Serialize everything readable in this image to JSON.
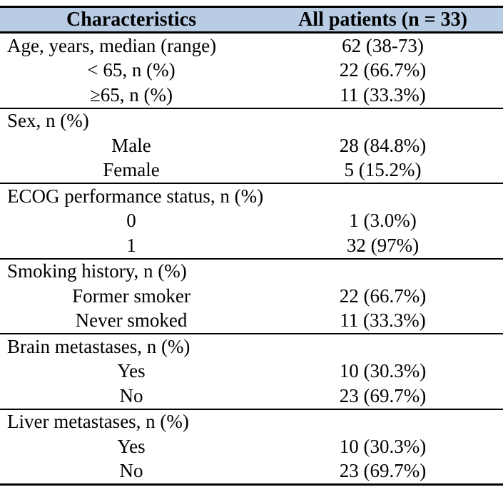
{
  "table": {
    "header": {
      "col1": "Characteristics",
      "col2": "All patients (n = 33)"
    },
    "sections": [
      {
        "name": "age",
        "rows": [
          {
            "label": "Age, years, median (range)",
            "value": "62 (38-73)",
            "indent": false
          },
          {
            "label": "< 65, n (%)",
            "value": "22 (66.7%)",
            "indent": true
          },
          {
            "label": "≥65, n (%)",
            "value": "11 (33.3%)",
            "indent": true
          }
        ]
      },
      {
        "name": "sex",
        "rows": [
          {
            "label": "Sex, n (%)",
            "value": "",
            "indent": false
          },
          {
            "label": "Male",
            "value": "28 (84.8%)",
            "indent": true
          },
          {
            "label": "Female",
            "value": "5 (15.2%)",
            "indent": true
          }
        ]
      },
      {
        "name": "ecog",
        "rows": [
          {
            "label": "ECOG performance status, n (%)",
            "value": "",
            "indent": false
          },
          {
            "label": "0",
            "value": "1 (3.0%)",
            "indent": true
          },
          {
            "label": "1",
            "value": "32 (97%)",
            "indent": true
          }
        ]
      },
      {
        "name": "smoking",
        "rows": [
          {
            "label": "Smoking history, n (%)",
            "value": "",
            "indent": false
          },
          {
            "label": "Former smoker",
            "value": "22 (66.7%)",
            "indent": true
          },
          {
            "label": "Never smoked",
            "value": "11 (33.3%)",
            "indent": true
          }
        ]
      },
      {
        "name": "brain-metastases",
        "rows": [
          {
            "label": "Brain metastases, n (%)",
            "value": "",
            "indent": false
          },
          {
            "label": "Yes",
            "value": "10 (30.3%)",
            "indent": true
          },
          {
            "label": "No",
            "value": "23 (69.7%)",
            "indent": true
          }
        ]
      },
      {
        "name": "liver-metastases",
        "rows": [
          {
            "label": "Liver metastases, n (%)",
            "value": "",
            "indent": false
          },
          {
            "label": "Yes",
            "value": "10 (30.3%)",
            "indent": true
          },
          {
            "label": "No",
            "value": "23 (69.7%)",
            "indent": true
          }
        ]
      }
    ],
    "colors": {
      "header_bg": "#b8cce4",
      "border": "#000000",
      "text": "#000000"
    }
  }
}
